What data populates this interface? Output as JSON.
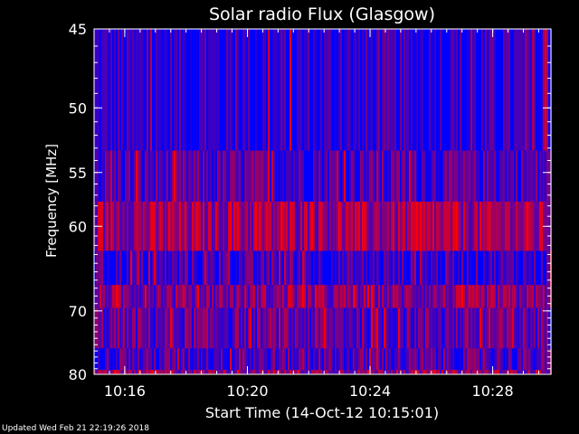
{
  "chart_data": {
    "type": "heatmap",
    "title": "Solar radio Flux (Glasgow)",
    "xlabel": "Start Time (14-Oct-12 10:15:01)",
    "ylabel": "Frequency [MHz]",
    "x_ticks": [
      "10:16",
      "10:20",
      "10:24",
      "10:28"
    ],
    "x_tick_minutes": [
      1,
      5,
      9,
      13
    ],
    "xlim_minutes": [
      0,
      14.9
    ],
    "y_ticks": [
      45,
      50,
      55,
      60,
      70,
      80
    ],
    "ylim": [
      45,
      80
    ],
    "y_scale": "reciprocal",
    "colormap": [
      "#0000ff",
      "#ff0000"
    ],
    "bands": [
      {
        "f_start": 45,
        "f_end": 53.2,
        "intensity": 0.12
      },
      {
        "f_start": 53.2,
        "f_end": 57.6,
        "intensity": 0.28
      },
      {
        "f_start": 57.6,
        "f_end": 62.6,
        "intensity": 0.58
      },
      {
        "f_start": 62.6,
        "f_end": 66.6,
        "intensity": 0.2
      },
      {
        "f_start": 66.6,
        "f_end": 69.6,
        "intensity": 0.48
      },
      {
        "f_start": 69.6,
        "f_end": 75.6,
        "intensity": 0.36
      },
      {
        "f_start": 75.6,
        "f_end": 79.2,
        "intensity": 0.3
      },
      {
        "f_start": 79.2,
        "f_end": 80,
        "intensity": 0.55
      }
    ]
  },
  "footer": "Updated Wed Feb 21 22:19:26 2018"
}
